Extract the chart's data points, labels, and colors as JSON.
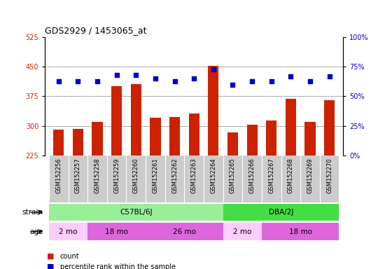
{
  "title": "GDS2929 / 1453065_at",
  "samples": [
    "GSM152256",
    "GSM152257",
    "GSM152258",
    "GSM152259",
    "GSM152260",
    "GSM152261",
    "GSM152262",
    "GSM152263",
    "GSM152264",
    "GSM152265",
    "GSM152266",
    "GSM152267",
    "GSM152268",
    "GSM152269",
    "GSM152270"
  ],
  "counts": [
    291,
    292,
    311,
    400,
    406,
    320,
    323,
    331,
    452,
    283,
    303,
    313,
    368,
    310,
    365
  ],
  "percentiles": [
    63,
    63,
    63,
    68,
    68,
    65,
    63,
    65,
    73,
    60,
    63,
    63,
    67,
    63,
    67
  ],
  "ylim_left": [
    225,
    525
  ],
  "ylim_right": [
    0,
    100
  ],
  "yticks_left": [
    225,
    300,
    375,
    450,
    525
  ],
  "yticks_right": [
    0,
    25,
    50,
    75,
    100
  ],
  "bar_color": "#cc2200",
  "dot_color": "#0000cc",
  "strain_groups": [
    {
      "label": "C57BL/6J",
      "start": 0,
      "end": 8,
      "color": "#99ee99"
    },
    {
      "label": "DBA/2J",
      "start": 9,
      "end": 14,
      "color": "#44dd44"
    }
  ],
  "age_groups": [
    {
      "label": "2 mo",
      "start": 0,
      "end": 1,
      "color": "#ffccff"
    },
    {
      "label": "18 mo",
      "start": 2,
      "end": 4,
      "color": "#dd66dd"
    },
    {
      "label": "26 mo",
      "start": 5,
      "end": 8,
      "color": "#dd66dd"
    },
    {
      "label": "2 mo",
      "start": 9,
      "end": 10,
      "color": "#ffccff"
    },
    {
      "label": "18 mo",
      "start": 11,
      "end": 14,
      "color": "#dd66dd"
    }
  ],
  "tick_label_bg": "#cccccc",
  "legend_count_color": "#cc2200",
  "legend_dot_color": "#0000cc",
  "grid_yticks": [
    300,
    375,
    450
  ]
}
